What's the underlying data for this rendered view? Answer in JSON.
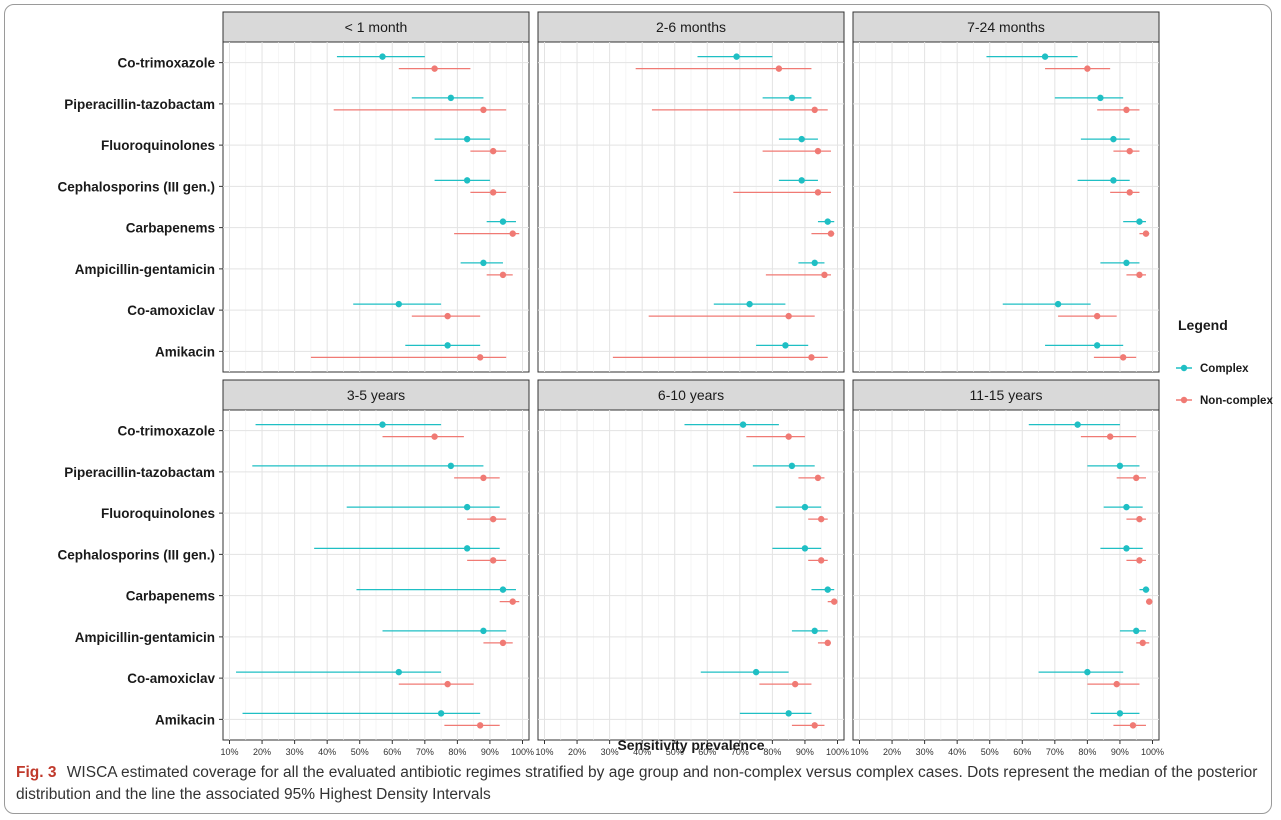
{
  "chart_data": {
    "type": "scatter",
    "subtype": "forest-plot",
    "facet_titles": [
      "< 1 month",
      "2-6 months",
      "7-24 months",
      "3-5 years",
      "6-10 years",
      "11-15 years"
    ],
    "categories": [
      "Co-trimoxazole",
      "Piperacillin-tazobactam",
      "Fluoroquinolones",
      "Cephalosporins (III gen.)",
      "Carbapenems",
      "Ampicillin-gentamicin",
      "Co-amoxiclav",
      "Amikacin"
    ],
    "x_ticks": [
      "10%",
      "20%",
      "30%",
      "40%",
      "50%",
      "60%",
      "70%",
      "80%",
      "90%",
      "100%"
    ],
    "xlim": [
      0.08,
      1.02
    ],
    "xlabel": "Sensitivity prevalence",
    "grid": true,
    "legend": {
      "title": "Legend",
      "position": "right",
      "entries": [
        {
          "name": "Complex",
          "color": "#1fbfc4"
        },
        {
          "name": "Non-complex",
          "color": "#f07a74"
        }
      ]
    },
    "panels": [
      {
        "complex": [
          [
            0.57,
            0.43,
            0.7
          ],
          [
            0.78,
            0.66,
            0.88
          ],
          [
            0.83,
            0.73,
            0.9
          ],
          [
            0.83,
            0.73,
            0.9
          ],
          [
            0.94,
            0.89,
            0.98
          ],
          [
            0.88,
            0.81,
            0.94
          ],
          [
            0.62,
            0.48,
            0.75
          ],
          [
            0.77,
            0.64,
            0.87
          ]
        ],
        "noncomplex": [
          [
            0.73,
            0.62,
            0.84
          ],
          [
            0.88,
            0.42,
            0.95
          ],
          [
            0.91,
            0.84,
            0.95
          ],
          [
            0.91,
            0.84,
            0.95
          ],
          [
            0.97,
            0.79,
            0.99
          ],
          [
            0.94,
            0.89,
            0.97
          ],
          [
            0.77,
            0.66,
            0.87
          ],
          [
            0.87,
            0.35,
            0.95
          ]
        ]
      },
      {
        "complex": [
          [
            0.69,
            0.57,
            0.8
          ],
          [
            0.86,
            0.77,
            0.92
          ],
          [
            0.89,
            0.82,
            0.94
          ],
          [
            0.89,
            0.82,
            0.94
          ],
          [
            0.97,
            0.94,
            0.99
          ],
          [
            0.93,
            0.88,
            0.96
          ],
          [
            0.73,
            0.62,
            0.84
          ],
          [
            0.84,
            0.75,
            0.91
          ]
        ],
        "noncomplex": [
          [
            0.82,
            0.38,
            0.92
          ],
          [
            0.93,
            0.43,
            0.97
          ],
          [
            0.94,
            0.77,
            0.98
          ],
          [
            0.94,
            0.68,
            0.98
          ],
          [
            0.98,
            0.92,
            0.99
          ],
          [
            0.96,
            0.78,
            0.98
          ],
          [
            0.85,
            0.42,
            0.93
          ],
          [
            0.92,
            0.31,
            0.97
          ]
        ]
      },
      {
        "complex": [
          [
            0.67,
            0.49,
            0.77
          ],
          [
            0.84,
            0.7,
            0.91
          ],
          [
            0.88,
            0.78,
            0.93
          ],
          [
            0.88,
            0.77,
            0.93
          ],
          [
            0.96,
            0.91,
            0.98
          ],
          [
            0.92,
            0.84,
            0.96
          ],
          [
            0.71,
            0.54,
            0.81
          ],
          [
            0.83,
            0.67,
            0.91
          ]
        ],
        "noncomplex": [
          [
            0.8,
            0.67,
            0.87
          ],
          [
            0.92,
            0.83,
            0.96
          ],
          [
            0.93,
            0.88,
            0.96
          ],
          [
            0.93,
            0.87,
            0.96
          ],
          [
            0.98,
            0.96,
            0.99
          ],
          [
            0.96,
            0.92,
            0.98
          ],
          [
            0.83,
            0.71,
            0.89
          ],
          [
            0.91,
            0.82,
            0.95
          ]
        ]
      },
      {
        "complex": [
          [
            0.57,
            0.18,
            0.75
          ],
          [
            0.78,
            0.17,
            0.88
          ],
          [
            0.83,
            0.46,
            0.93
          ],
          [
            0.83,
            0.36,
            0.93
          ],
          [
            0.94,
            0.49,
            0.98
          ],
          [
            0.88,
            0.57,
            0.95
          ],
          [
            0.62,
            0.12,
            0.75
          ],
          [
            0.75,
            0.14,
            0.87
          ]
        ],
        "noncomplex": [
          [
            0.73,
            0.57,
            0.82
          ],
          [
            0.88,
            0.79,
            0.93
          ],
          [
            0.91,
            0.83,
            0.95
          ],
          [
            0.91,
            0.83,
            0.95
          ],
          [
            0.97,
            0.93,
            0.99
          ],
          [
            0.94,
            0.88,
            0.97
          ],
          [
            0.77,
            0.62,
            0.85
          ],
          [
            0.87,
            0.76,
            0.93
          ]
        ]
      },
      {
        "complex": [
          [
            0.71,
            0.53,
            0.82
          ],
          [
            0.86,
            0.74,
            0.93
          ],
          [
            0.9,
            0.81,
            0.95
          ],
          [
            0.9,
            0.8,
            0.95
          ],
          [
            0.97,
            0.92,
            0.99
          ],
          [
            0.93,
            0.86,
            0.97
          ],
          [
            0.75,
            0.58,
            0.85
          ],
          [
            0.85,
            0.7,
            0.92
          ]
        ],
        "noncomplex": [
          [
            0.85,
            0.72,
            0.9
          ],
          [
            0.94,
            0.88,
            0.96
          ],
          [
            0.95,
            0.91,
            0.97
          ],
          [
            0.95,
            0.91,
            0.97
          ],
          [
            0.99,
            0.97,
            0.99
          ],
          [
            0.97,
            0.94,
            0.98
          ],
          [
            0.87,
            0.76,
            0.92
          ],
          [
            0.93,
            0.86,
            0.96
          ]
        ]
      },
      {
        "complex": [
          [
            0.77,
            0.62,
            0.9
          ],
          [
            0.9,
            0.8,
            0.96
          ],
          [
            0.92,
            0.85,
            0.97
          ],
          [
            0.92,
            0.84,
            0.97
          ],
          [
            0.98,
            0.96,
            0.99
          ],
          [
            0.95,
            0.9,
            0.98
          ],
          [
            0.8,
            0.65,
            0.91
          ],
          [
            0.9,
            0.81,
            0.96
          ]
        ],
        "noncomplex": [
          [
            0.87,
            0.78,
            0.95
          ],
          [
            0.95,
            0.89,
            0.98
          ],
          [
            0.96,
            0.92,
            0.98
          ],
          [
            0.96,
            0.92,
            0.98
          ],
          [
            0.99,
            0.98,
            1.0
          ],
          [
            0.97,
            0.95,
            0.99
          ],
          [
            0.89,
            0.8,
            0.96
          ],
          [
            0.94,
            0.88,
            0.98
          ]
        ]
      }
    ]
  },
  "caption": {
    "label": "Fig. 3",
    "text": "WISCA estimated coverage for all the evaluated antibiotic regimes stratified by age group and non-complex versus complex cases. Dots represent the median of the posterior distribution and the line the associated 95% Highest Density Intervals"
  }
}
